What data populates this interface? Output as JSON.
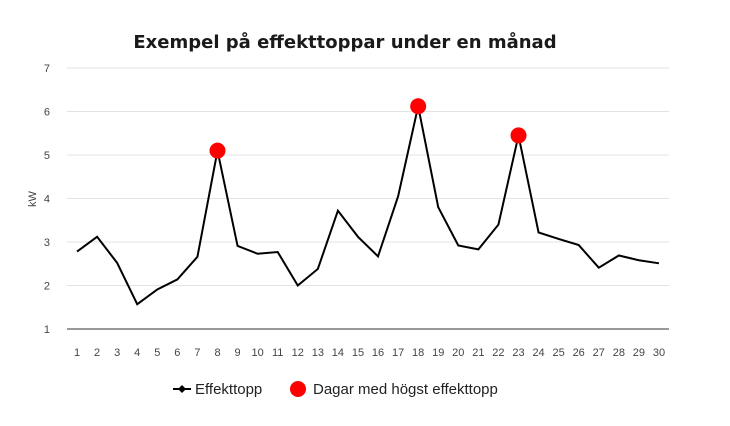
{
  "chart_data": {
    "type": "line",
    "title": "Exempel på effekttoppar under en månad",
    "xlabel": "",
    "ylabel": "kW",
    "ylim": [
      1,
      7
    ],
    "yticks": [
      1,
      2,
      3,
      4,
      5,
      6,
      7
    ],
    "grid": true,
    "legend_position": "bottom",
    "categories": [
      "1",
      "2",
      "3",
      "4",
      "5",
      "6",
      "7",
      "8",
      "9",
      "10",
      "11",
      "12",
      "13",
      "14",
      "15",
      "16",
      "17",
      "18",
      "19",
      "20",
      "21",
      "22",
      "23",
      "24",
      "25",
      "26",
      "27",
      "28",
      "29",
      "30"
    ],
    "series": [
      {
        "name": "Effekttopp",
        "color": "#000000",
        "values": [
          2.78,
          3.12,
          2.52,
          1.57,
          1.91,
          2.14,
          2.66,
          5.1,
          2.91,
          2.73,
          2.77,
          2.0,
          2.38,
          3.72,
          3.12,
          2.67,
          4.05,
          6.12,
          3.8,
          2.92,
          2.83,
          3.4,
          5.45,
          3.22,
          3.07,
          2.93,
          2.41,
          2.69,
          2.58,
          2.51
        ]
      },
      {
        "name": "Dagar med högst effekttopp",
        "color": "#ff0000",
        "marker": "circle",
        "points": [
          {
            "x": "8",
            "y": 5.1
          },
          {
            "x": "18",
            "y": 6.12
          },
          {
            "x": "23",
            "y": 5.45
          }
        ]
      }
    ]
  }
}
